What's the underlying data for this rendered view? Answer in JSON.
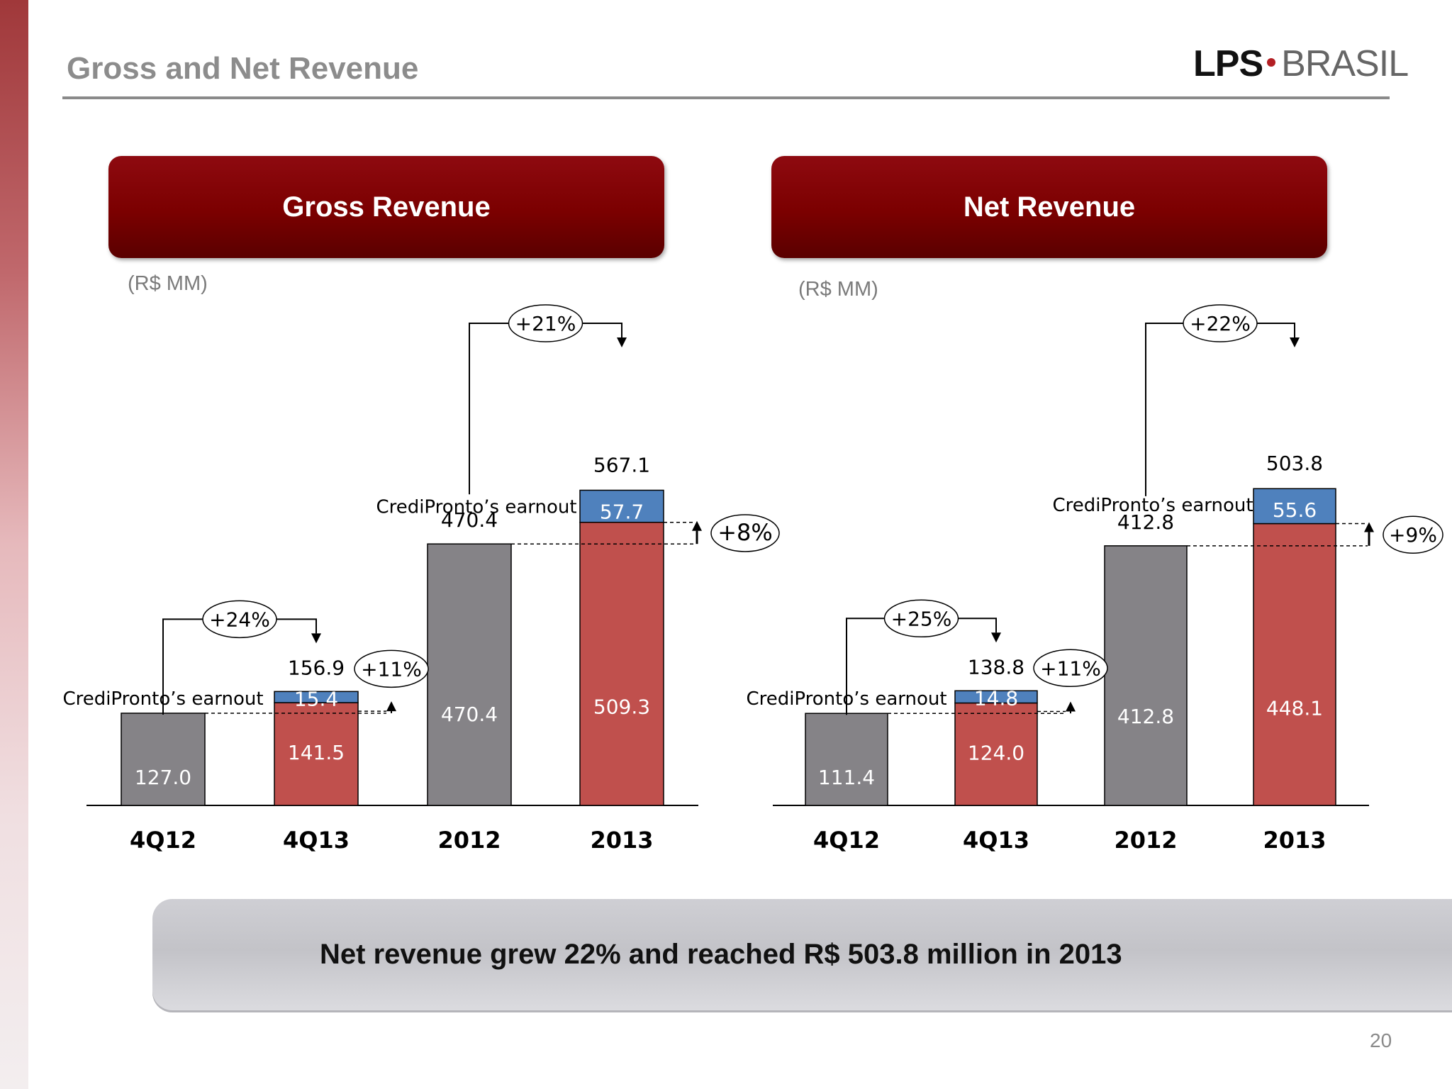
{
  "title": "Gross and Net Revenue",
  "logo": {
    "part1": "LPS",
    "part2": "BRASIL"
  },
  "page_number": "20",
  "banner": "Net revenue grew 22% and reached R$ 503.8 million in 2013",
  "colors": {
    "gray": "#858387",
    "red": "#c0504d",
    "blue": "#4f81bd",
    "header": "#7b0000"
  },
  "chart_data": [
    {
      "type": "bar",
      "title": "Gross Revenue",
      "unit_label": "(R$ MM)",
      "categories": [
        "4Q12",
        "4Q13",
        "2012",
        "2013"
      ],
      "series": [
        {
          "name": "",
          "values": [
            127.0,
            141.5,
            470.4,
            509.3
          ]
        },
        {
          "name": "CrediPronto’s earnout",
          "values": [
            0,
            15.4,
            0,
            57.7
          ]
        }
      ],
      "totals": [
        "156.9",
        "470.4",
        "567.1"
      ],
      "stack_labels": [
        "127.0",
        "141.5",
        "15.4",
        "470.4",
        "509.3",
        "57.7"
      ],
      "earnout_label": "CrediPronto’s earnout",
      "growth": [
        "+24%",
        "+11%",
        "+21%",
        "+8%"
      ]
    },
    {
      "type": "bar",
      "title": "Net Revenue",
      "unit_label": "(R$ MM)",
      "categories": [
        "4Q12",
        "4Q13",
        "2012",
        "2013"
      ],
      "series": [
        {
          "name": "",
          "values": [
            111.4,
            124.0,
            412.8,
            448.1
          ]
        },
        {
          "name": "CrediPronto’s earnout",
          "values": [
            0,
            14.8,
            0,
            55.6
          ]
        }
      ],
      "totals": [
        "138.8",
        "412.8",
        "503.8"
      ],
      "stack_labels": [
        "111.4",
        "124.0",
        "14.8",
        "412.8",
        "448.1",
        "55.6"
      ],
      "earnout_label": "CrediPronto’s earnout",
      "growth": [
        "+25%",
        "+11%",
        "+22%",
        "+9%"
      ]
    }
  ]
}
